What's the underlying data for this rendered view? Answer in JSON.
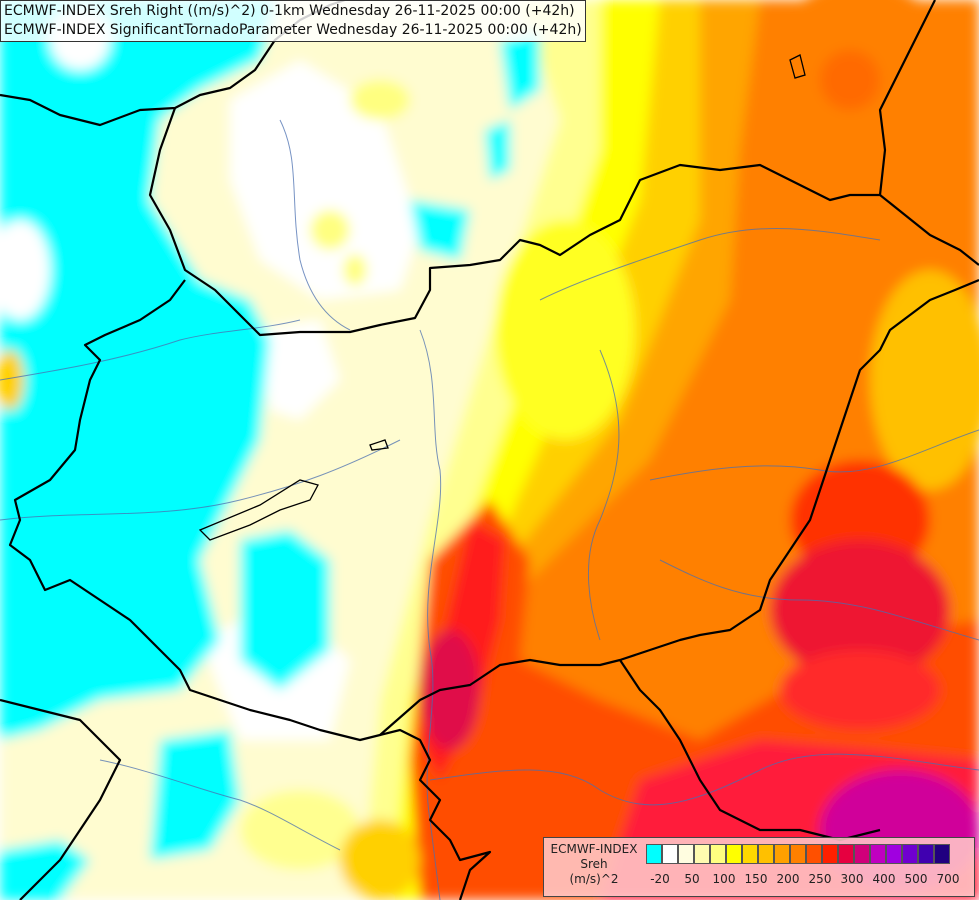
{
  "header": {
    "line1": "ECMWF-INDEX Sreh Right ((m/s)^2) 0-1km Wednesday 26-11-2025 00:00 (+42h)",
    "line2": "ECMWF-INDEX SignificantTornadoParameter Wednesday 26-11-2025 00:00 (+42h)"
  },
  "legend": {
    "title1": "ECMWF-INDEX",
    "title2": "Sreh",
    "unit": "(m/s)^2",
    "colors": [
      "#00ffff",
      "#ffffff",
      "#fffde0",
      "#fffbb0",
      "#ffff80",
      "#ffff00",
      "#ffd800",
      "#ffc000",
      "#ffa000",
      "#ff8000",
      "#ff5000",
      "#ff2000",
      "#e60040",
      "#d0007a",
      "#c000c0",
      "#a000e0",
      "#7000d0",
      "#4000b0",
      "#200080"
    ],
    "ticks": [
      "-20",
      "50",
      "100",
      "150",
      "200",
      "250",
      "300",
      "400",
      "500",
      "700"
    ]
  },
  "palette": {
    "cyan": "#00ffff",
    "white": "#ffffff",
    "cream": "#fffcd0",
    "pale_yellow": "#ffffa0",
    "yellow": "#ffff00",
    "gold": "#ffd000",
    "orange": "#ffa500",
    "deep_orange": "#ff7a00",
    "red_orange": "#ff4500",
    "red": "#ff1a1a",
    "crimson": "#e0104a",
    "magenta": "#d000a0",
    "border": "#000000",
    "river": "#4a6fb0"
  }
}
